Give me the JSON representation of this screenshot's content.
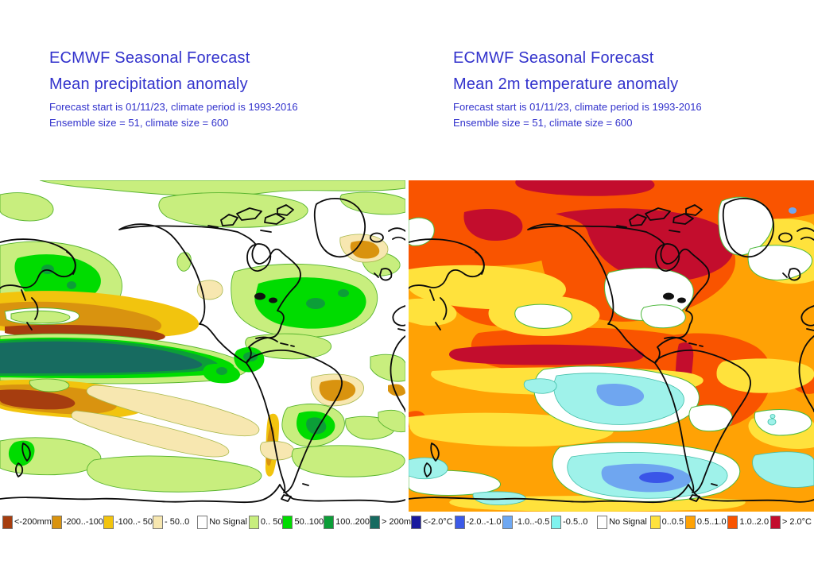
{
  "page": {
    "background": "#FFFFFF",
    "title_color": "#3232CC"
  },
  "panels": [
    {
      "id": "precipitation",
      "title": "ECMWF Seasonal Forecast",
      "subtitle": "Mean precipitation anomaly",
      "info_line1": "Forecast start is 01/11/23, climate period is 1993-2016",
      "info_line2": "Ensemble size = 51, climate size = 600",
      "legend": [
        {
          "label": "<-200mm",
          "color": "#A63D0F"
        },
        {
          "label": "-200..-100",
          "color": "#D9930F"
        },
        {
          "label": "-100..- 50",
          "color": "#F2C40E"
        },
        {
          "label": "- 50..0",
          "color": "#F7E7B0"
        },
        {
          "label": "No Signal",
          "color": "#FFFFFF"
        },
        {
          "label": "0.. 50",
          "color": "#C8EE7E"
        },
        {
          "label": "50..100",
          "color": "#00DC00"
        },
        {
          "label": "100..200",
          "color": "#0C9E38"
        },
        {
          "label": "> 200mm",
          "color": "#176B60"
        }
      ]
    },
    {
      "id": "temperature",
      "title": "ECMWF Seasonal Forecast",
      "subtitle": "Mean 2m temperature anomaly",
      "info_line1": "Forecast start is 01/11/23, climate period is 1993-2016",
      "info_line2": "Ensemble size = 51, climate size = 600",
      "legend": [
        {
          "label": "<-2.0°C",
          "color": "#1A1A9E"
        },
        {
          "label": "-2.0..-1.0",
          "color": "#3C5AE8"
        },
        {
          "label": "-1.0..-0.5",
          "color": "#6FA8F2"
        },
        {
          "label": "-0.5..0",
          "color": "#7FF2EE"
        },
        {
          "label": "No Signal",
          "color": "#FFFFFF"
        },
        {
          "label": "0..0.5",
          "color": "#FFE23C"
        },
        {
          "label": "0.5..1.0",
          "color": "#FFA205"
        },
        {
          "label": "1.0..2.0",
          "color": "#F95400"
        },
        {
          "label": "> 2.0°C",
          "color": "#C30D2D"
        }
      ]
    }
  ],
  "chart_data": [
    {
      "type": "heatmap",
      "title": "ECMWF Seasonal Forecast — Mean precipitation anomaly",
      "forecast_start": "01/11/23",
      "climate_period": "1993-2016",
      "ensemble_size": 51,
      "climate_size": 600,
      "units": "mm",
      "projection": "global, Pacific/Americas-centered",
      "scale_bins": [
        "<-200",
        "-200..-100",
        "-100..-50",
        "-50..0",
        "No Signal",
        "0..50",
        "50..100",
        "100..200",
        ">200"
      ],
      "legend_position": "bottom",
      "notable_features": [
        "Strong wet anomaly band (>200mm, dark teal) along the equatorial central Pacific, fringed by 50..200mm greens toward South America",
        "Dry anomalies (-100..-200mm and <-200mm) flanking the wet band in the subtropical North and South Pacific",
        "Wet anomalies (50..100mm) over the northwest Pacific and the western subtropical North Atlantic",
        "Wet anomaly core (100..200mm) over Uruguay / southern Brazil and near Colombia",
        "Dry anomalies (-50..-200mm) over northern and northeast Brazil and east of Greenland",
        "Weak wet anomalies (0..50mm) across the Arctic rim and the Southern Ocean; No Signal (white) over much of the mid-ocean basins"
      ]
    },
    {
      "type": "heatmap",
      "title": "ECMWF Seasonal Forecast — Mean 2m temperature anomaly",
      "forecast_start": "01/11/23",
      "climate_period": "1993-2016",
      "ensemble_size": 51,
      "climate_size": 600,
      "units": "°C",
      "projection": "global, Pacific/Americas-centered",
      "scale_bins": [
        "<-2.0",
        "-2.0..-1.0",
        "-1.0..-0.5",
        "-0.5..0",
        "No Signal",
        "0..0.5",
        "0.5..1.0",
        "1.0..2.0",
        ">2.0"
      ],
      "legend_position": "bottom",
      "notable_features": [
        "Warm anomalies (1.0..2.0°C) cover most of the northern hemisphere and tropics",
        "Very warm anomalies (>2.0°C) over Alaska, central/eastern Canada and an El Niño tongue along the equatorial central Pacific",
        "Warm (1.0..2.0°C) over most of South America with a >2.0°C strip along the Andes",
        "Cool anomalies (-0.5..-1.0°C) in the southeast Pacific west of southern South America and in the Southern Ocean, with -1.0..-2.0°C cores",
        "No Signal (white) over the central United States, Greenland interior and the subtropical North Atlantic",
        "Mild warm anomalies (0..0.5°C, yellow) in subtropical Pacific bands and parts of the Atlantic"
      ]
    }
  ]
}
